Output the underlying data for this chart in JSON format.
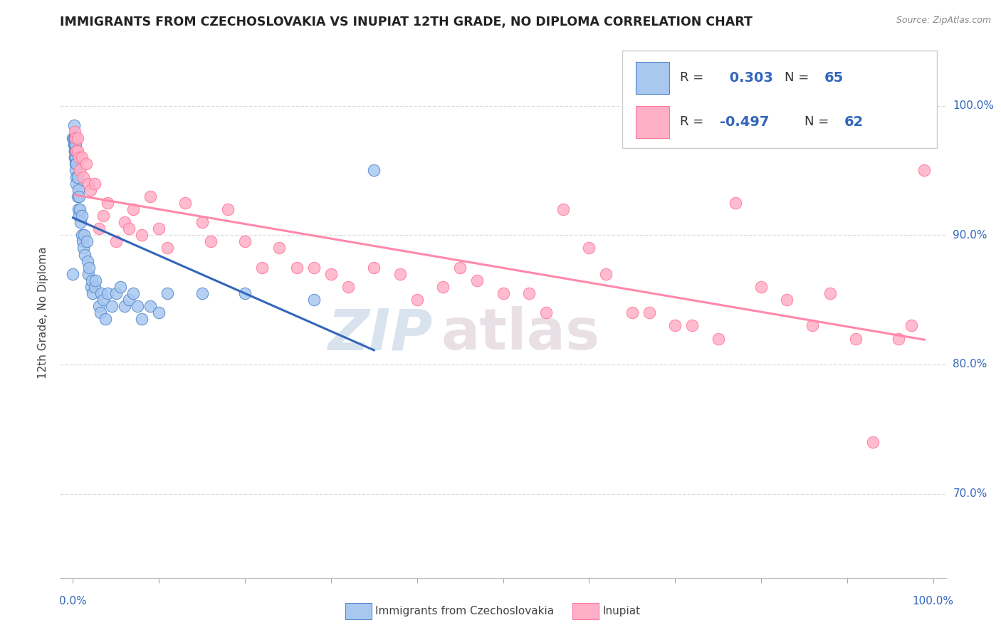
{
  "title": "IMMIGRANTS FROM CZECHOSLOVAKIA VS INUPIAT 12TH GRADE, NO DIPLOMA CORRELATION CHART",
  "source": "Source: ZipAtlas.com",
  "ylabel": "12th Grade, No Diploma",
  "watermark_zip": "ZIP",
  "watermark_atlas": "atlas",
  "blue_R": 0.303,
  "blue_N": 65,
  "pink_R": -0.497,
  "pink_N": 62,
  "blue_label": "Immigrants from Czechoslovakia",
  "pink_label": "Inupiat",
  "blue_color": "#a8c8f0",
  "blue_edge": "#5588cc",
  "pink_color": "#ffb0c8",
  "pink_edge": "#ff7799",
  "blue_line_color": "#3366bb",
  "pink_line_color": "#ff88aa",
  "ymin": 0.635,
  "ymax": 1.045,
  "xmin": -0.015,
  "xmax": 1.015,
  "ytick_vals": [
    0.7,
    0.8,
    0.9,
    1.0
  ],
  "ytick_labels": [
    "70.0%",
    "80.0%",
    "90.0%",
    "100.0%"
  ],
  "blue_x": [
    0.0,
    0.0,
    0.001,
    0.001,
    0.001,
    0.001,
    0.001,
    0.002,
    0.002,
    0.002,
    0.002,
    0.002,
    0.002,
    0.003,
    0.003,
    0.003,
    0.003,
    0.003,
    0.004,
    0.004,
    0.004,
    0.005,
    0.005,
    0.006,
    0.006,
    0.007,
    0.007,
    0.008,
    0.009,
    0.01,
    0.01,
    0.011,
    0.012,
    0.013,
    0.014,
    0.016,
    0.017,
    0.018,
    0.019,
    0.021,
    0.022,
    0.023,
    0.025,
    0.026,
    0.03,
    0.032,
    0.033,
    0.035,
    0.038,
    0.04,
    0.045,
    0.05,
    0.055,
    0.06,
    0.065,
    0.07,
    0.075,
    0.08,
    0.09,
    0.1,
    0.11,
    0.15,
    0.2,
    0.28,
    0.35
  ],
  "blue_y": [
    0.87,
    0.975,
    0.97,
    0.975,
    0.985,
    0.97,
    0.975,
    0.96,
    0.965,
    0.97,
    0.96,
    0.975,
    0.965,
    0.96,
    0.965,
    0.97,
    0.955,
    0.95,
    0.945,
    0.94,
    0.955,
    0.93,
    0.945,
    0.935,
    0.92,
    0.93,
    0.915,
    0.92,
    0.91,
    0.9,
    0.915,
    0.895,
    0.89,
    0.9,
    0.885,
    0.895,
    0.88,
    0.87,
    0.875,
    0.86,
    0.865,
    0.855,
    0.86,
    0.865,
    0.845,
    0.84,
    0.855,
    0.85,
    0.835,
    0.855,
    0.845,
    0.855,
    0.86,
    0.845,
    0.85,
    0.855,
    0.845,
    0.835,
    0.845,
    0.84,
    0.855,
    0.855,
    0.855,
    0.85,
    0.95
  ],
  "pink_x": [
    0.002,
    0.003,
    0.004,
    0.005,
    0.005,
    0.007,
    0.008,
    0.01,
    0.012,
    0.015,
    0.018,
    0.02,
    0.025,
    0.03,
    0.035,
    0.04,
    0.05,
    0.06,
    0.065,
    0.07,
    0.08,
    0.09,
    0.1,
    0.11,
    0.13,
    0.15,
    0.16,
    0.18,
    0.2,
    0.22,
    0.24,
    0.26,
    0.28,
    0.3,
    0.32,
    0.35,
    0.38,
    0.4,
    0.43,
    0.45,
    0.47,
    0.5,
    0.53,
    0.55,
    0.57,
    0.6,
    0.62,
    0.65,
    0.67,
    0.7,
    0.72,
    0.75,
    0.77,
    0.8,
    0.83,
    0.86,
    0.88,
    0.91,
    0.93,
    0.96,
    0.975,
    0.99
  ],
  "pink_y": [
    0.98,
    0.975,
    0.965,
    0.975,
    0.965,
    0.96,
    0.95,
    0.96,
    0.945,
    0.955,
    0.94,
    0.935,
    0.94,
    0.905,
    0.915,
    0.925,
    0.895,
    0.91,
    0.905,
    0.92,
    0.9,
    0.93,
    0.905,
    0.89,
    0.925,
    0.91,
    0.895,
    0.92,
    0.895,
    0.875,
    0.89,
    0.875,
    0.875,
    0.87,
    0.86,
    0.875,
    0.87,
    0.85,
    0.86,
    0.875,
    0.865,
    0.855,
    0.855,
    0.84,
    0.92,
    0.89,
    0.87,
    0.84,
    0.84,
    0.83,
    0.83,
    0.82,
    0.925,
    0.86,
    0.85,
    0.83,
    0.855,
    0.82,
    0.74,
    0.82,
    0.83,
    0.95
  ]
}
